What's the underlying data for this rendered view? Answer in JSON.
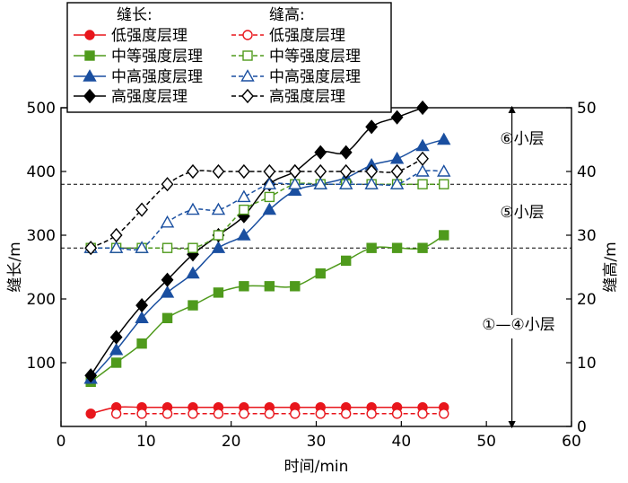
{
  "chart_data": {
    "type": "line",
    "xlabel": "时间/min",
    "ylabel_left": "缝长/m",
    "ylabel_right": "缝高/m",
    "xlim": [
      0,
      60
    ],
    "ylim_left": [
      0,
      500
    ],
    "ylim_right": [
      0,
      50
    ],
    "x_ticks": [
      "0",
      "10",
      "20",
      "30",
      "40",
      "50",
      "60"
    ],
    "y_left_ticks": [
      "100",
      "200",
      "300",
      "400",
      "500"
    ],
    "y_right_ticks": [
      "0",
      "10",
      "20",
      "30",
      "40",
      "50"
    ],
    "grid": false,
    "legend": {
      "placement": "top-left",
      "group_length": "缝长:",
      "group_height": "缝高:"
    },
    "series": [
      {
        "name": "低强度层理",
        "group": "length",
        "axis": "left",
        "color": "#e8161c",
        "marker": "circle",
        "filled": true,
        "dashed": false,
        "x": [
          3.5,
          6.5,
          9.5,
          12.5,
          15.5,
          18.5,
          21.5,
          24.5,
          27.5,
          30.5,
          33.5,
          36.5,
          39.5,
          42.5,
          45
        ],
        "y": [
          20,
          30,
          30,
          30,
          30,
          30,
          30,
          30,
          30,
          30,
          30,
          30,
          30,
          30,
          30
        ]
      },
      {
        "name": "中等强度层理",
        "group": "length",
        "axis": "left",
        "color": "#4f9a1c",
        "marker": "square",
        "filled": true,
        "dashed": false,
        "x": [
          3.5,
          6.5,
          9.5,
          12.5,
          15.5,
          18.5,
          21.5,
          24.5,
          27.5,
          30.5,
          33.5,
          36.5,
          39.5,
          42.5,
          45
        ],
        "y": [
          70,
          100,
          130,
          170,
          190,
          210,
          220,
          220,
          220,
          240,
          260,
          280,
          280,
          280,
          300
        ]
      },
      {
        "name": "中高强度层理",
        "group": "length",
        "axis": "left",
        "color": "#1a4fa0",
        "marker": "triangle",
        "filled": true,
        "dashed": false,
        "x": [
          3.5,
          6.5,
          9.5,
          12.5,
          15.5,
          18.5,
          21.5,
          24.5,
          27.5,
          30.5,
          33.5,
          36.5,
          39.5,
          42.5,
          45
        ],
        "y": [
          75,
          120,
          170,
          210,
          240,
          280,
          300,
          340,
          370,
          380,
          390,
          410,
          420,
          440,
          450
        ]
      },
      {
        "name": "高强度层理",
        "group": "length",
        "axis": "left",
        "color": "#000000",
        "marker": "diamond",
        "filled": true,
        "dashed": false,
        "x": [
          3.5,
          6.5,
          9.5,
          12.5,
          15.5,
          18.5,
          21.5,
          24.5,
          27.5,
          30.5,
          33.5,
          36.5,
          39.5,
          42.5
        ],
        "y": [
          80,
          140,
          190,
          230,
          270,
          300,
          330,
          380,
          400,
          430,
          430,
          470,
          485,
          500
        ]
      },
      {
        "name": "低强度层理",
        "group": "height",
        "axis": "right",
        "color": "#e8161c",
        "marker": "circle",
        "filled": false,
        "dashed": true,
        "x": [
          6.5,
          9.5,
          12.5,
          15.5,
          18.5,
          21.5,
          24.5,
          27.5,
          30.5,
          33.5,
          36.5,
          39.5,
          42.5,
          45
        ],
        "y": [
          2,
          2,
          2,
          2,
          2,
          2,
          2,
          2,
          2,
          2,
          2,
          2,
          2,
          2
        ]
      },
      {
        "name": "中等强度层理",
        "group": "height",
        "axis": "right",
        "color": "#4f9a1c",
        "marker": "square",
        "filled": false,
        "dashed": true,
        "x": [
          3.5,
          6.5,
          9.5,
          12.5,
          15.5,
          18.5,
          21.5,
          24.5,
          27.5,
          30.5,
          33.5,
          36.5,
          39.5,
          42.5,
          45
        ],
        "y": [
          28,
          28,
          28,
          28,
          28,
          30,
          34,
          36,
          38,
          38,
          38,
          38,
          38,
          38,
          38
        ]
      },
      {
        "name": "中高强度层理",
        "group": "height",
        "axis": "right",
        "color": "#1a4fa0",
        "marker": "triangle",
        "filled": false,
        "dashed": true,
        "x": [
          3.5,
          6.5,
          9.5,
          12.5,
          15.5,
          18.5,
          21.5,
          24.5,
          27.5,
          30.5,
          33.5,
          36.5,
          39.5,
          42.5,
          45
        ],
        "y": [
          28,
          28,
          28,
          32,
          34,
          34,
          36,
          38,
          38,
          38,
          38,
          38,
          38,
          40,
          40
        ]
      },
      {
        "name": "高强度层理",
        "group": "height",
        "axis": "right",
        "color": "#000000",
        "marker": "diamond",
        "filled": false,
        "dashed": true,
        "x": [
          3.5,
          6.5,
          9.5,
          12.5,
          15.5,
          18.5,
          21.5,
          24.5,
          27.5,
          30.5,
          33.5,
          36.5,
          39.5,
          42.5
        ],
        "y": [
          28,
          30,
          34,
          38,
          40,
          40,
          40,
          40,
          40,
          40,
          40,
          40,
          40,
          42
        ]
      }
    ],
    "reference_lines_left": [
      380,
      280
    ],
    "annotations": {
      "zones": [
        {
          "label": "⑥小层",
          "from": 380,
          "to": 500
        },
        {
          "label": "⑤小层",
          "from": 280,
          "to": 380
        },
        {
          "label": "①—④小层",
          "from": 0,
          "to": 280
        }
      ],
      "arrow_x": 53
    }
  }
}
